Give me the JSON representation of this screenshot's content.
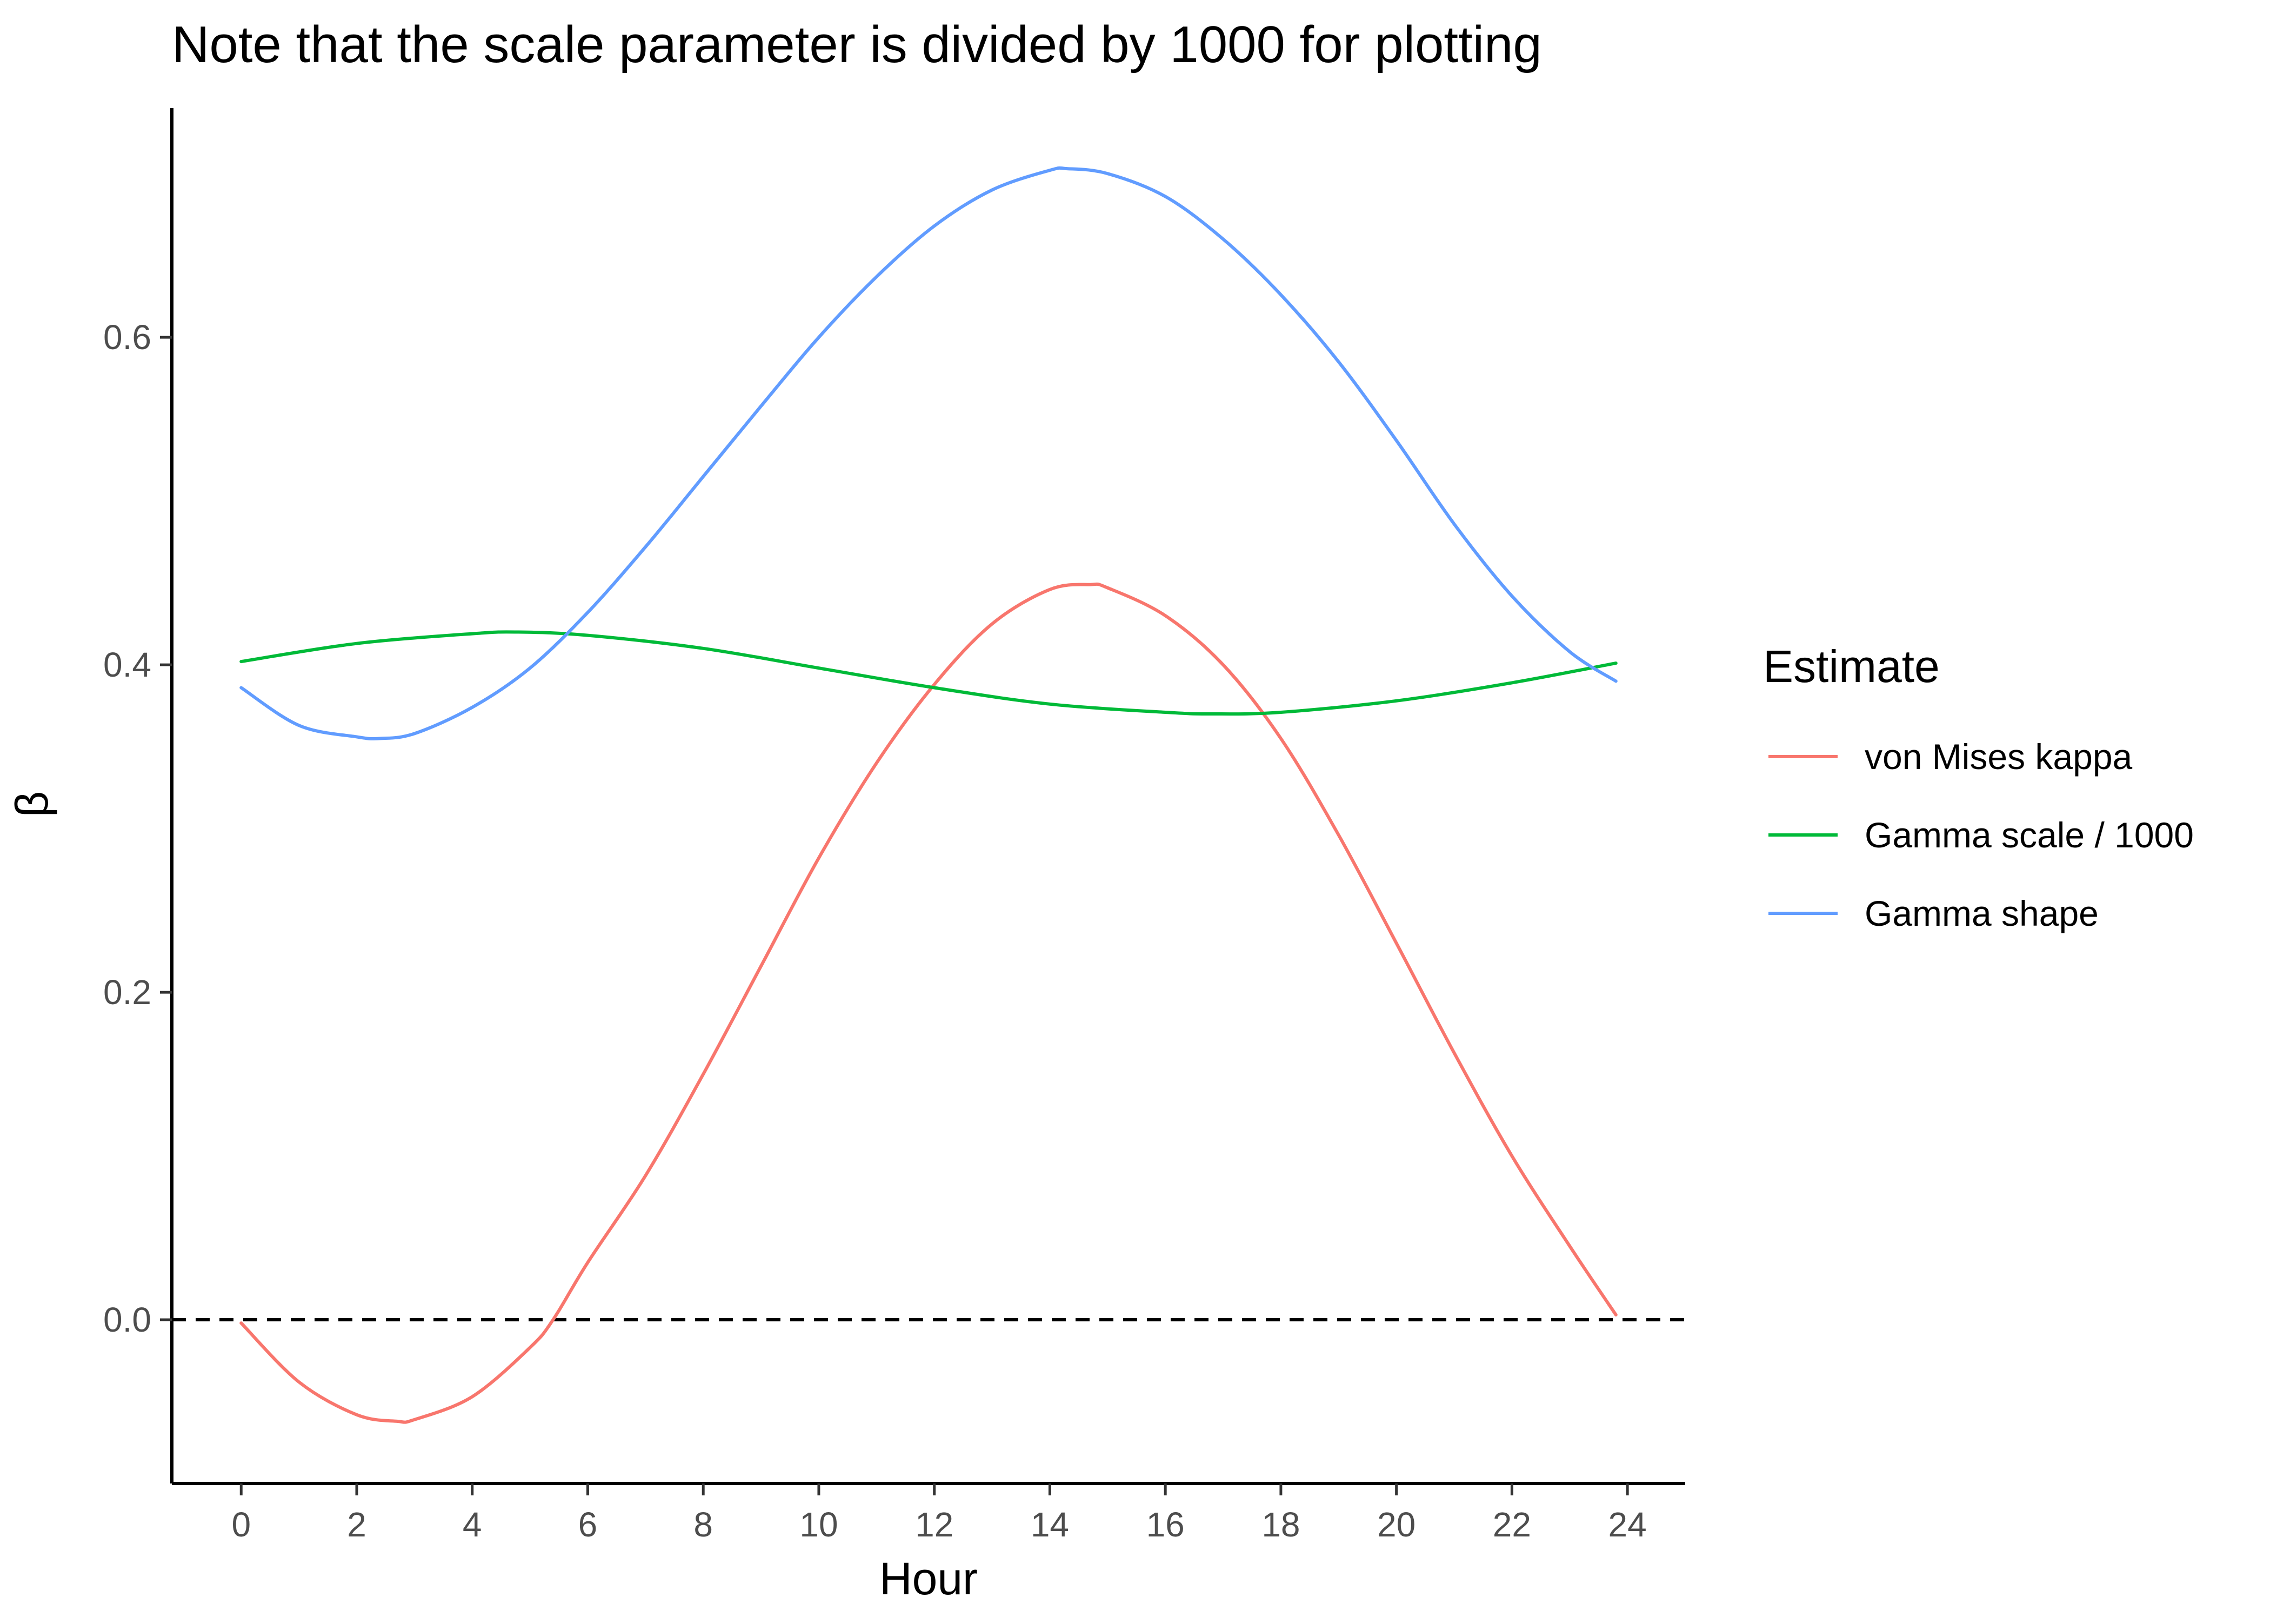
{
  "chart_data": {
    "type": "line",
    "title": "Note that the scale parameter is divided by 1000 for plotting",
    "xlabel": "Hour",
    "ylabel": "β",
    "xlim": [
      -1.2,
      25
    ],
    "ylim": [
      -0.1,
      0.74
    ],
    "x_ticks": [
      0,
      2,
      4,
      6,
      8,
      10,
      12,
      14,
      16,
      18,
      20,
      22,
      24
    ],
    "y_ticks": [
      0.0,
      0.2,
      0.4,
      0.6
    ],
    "y_tick_labels": [
      "0.0",
      "0.2",
      "0.4",
      "0.6"
    ],
    "x_tick_labels": [
      "0",
      "2",
      "4",
      "6",
      "8",
      "10",
      "12",
      "14",
      "16",
      "18",
      "20",
      "22",
      "24"
    ],
    "reference_line": {
      "y": 0.0,
      "style": "dashed",
      "color": "#000000"
    },
    "grid": false,
    "legend": {
      "title": "Estimate",
      "position": "right"
    },
    "series": [
      {
        "name": "von Mises kappa",
        "color": "#F8766D",
        "x": [
          0,
          1,
          2,
          2.7,
          3,
          4,
          5,
          5.4,
          6,
          7,
          8,
          9,
          10,
          11,
          12,
          13,
          14,
          14.7,
          15,
          16,
          17,
          18,
          19,
          20,
          21,
          22,
          23,
          23.8
        ],
        "y": [
          -0.002,
          -0.038,
          -0.058,
          -0.062,
          -0.061,
          -0.047,
          -0.017,
          0.0,
          0.035,
          0.088,
          0.15,
          0.216,
          0.282,
          0.34,
          0.388,
          0.425,
          0.446,
          0.449,
          0.447,
          0.43,
          0.4,
          0.355,
          0.296,
          0.23,
          0.163,
          0.1,
          0.045,
          0.003
        ]
      },
      {
        "name": "Gamma scale / 1000",
        "color": "#00BA38",
        "x": [
          0,
          2,
          4,
          4.8,
          6,
          8,
          10,
          12,
          14,
          16,
          16.8,
          18,
          20,
          22,
          23.8
        ],
        "y": [
          0.402,
          0.413,
          0.419,
          0.42,
          0.418,
          0.41,
          0.398,
          0.386,
          0.376,
          0.371,
          0.37,
          0.371,
          0.378,
          0.389,
          0.401
        ]
      },
      {
        "name": "Gamma shape",
        "color": "#619CFF",
        "x": [
          0,
          1,
          2,
          2.4,
          3,
          4,
          5,
          6,
          7,
          8,
          9,
          10,
          11,
          12,
          13,
          14,
          14.3,
          15,
          16,
          17,
          18,
          19,
          20,
          21,
          22,
          23,
          23.8
        ],
        "y": [
          0.386,
          0.363,
          0.356,
          0.355,
          0.358,
          0.374,
          0.398,
          0.432,
          0.472,
          0.515,
          0.558,
          0.6,
          0.637,
          0.668,
          0.69,
          0.702,
          0.703,
          0.7,
          0.686,
          0.66,
          0.626,
          0.585,
          0.537,
          0.486,
          0.442,
          0.408,
          0.39
        ]
      }
    ]
  }
}
